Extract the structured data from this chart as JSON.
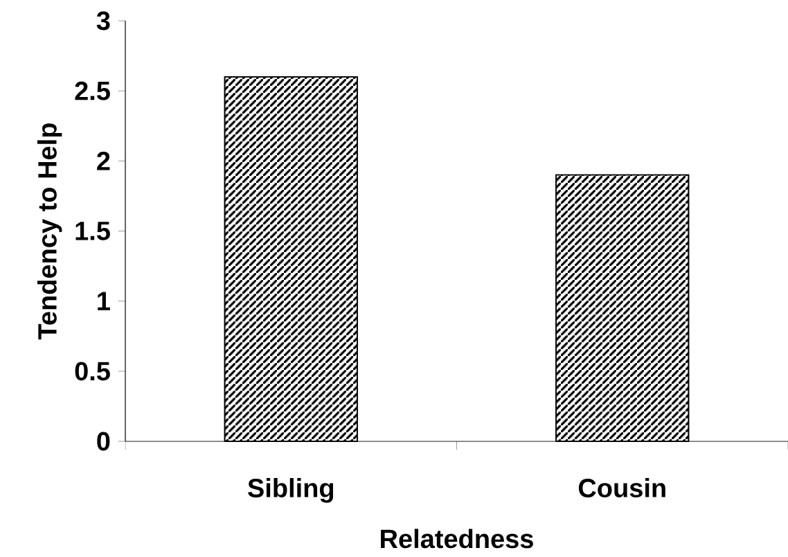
{
  "chart_data": {
    "type": "bar",
    "xlabel": "Relatedness",
    "ylabel": "Tendency to Help",
    "categories": [
      "Sibling",
      "Cousin"
    ],
    "values": [
      2.6,
      1.9
    ],
    "color": "#000000",
    "ylim": [
      0,
      3
    ],
    "yticks": [
      0,
      0.5,
      1,
      1.5,
      2,
      2.5,
      3
    ]
  }
}
